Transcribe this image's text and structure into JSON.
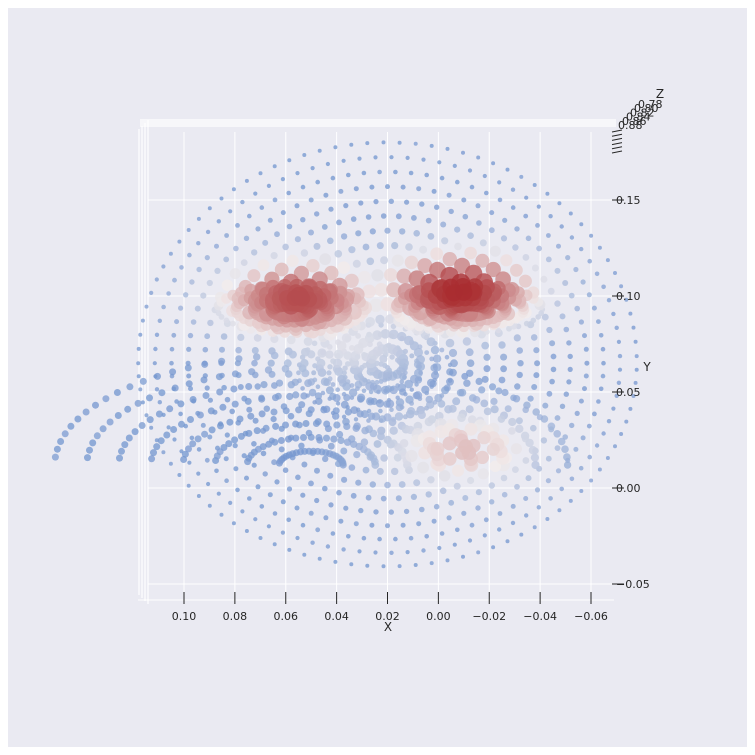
{
  "chart_data": {
    "type": "scatter",
    "projection": "3d, viewed from +Z (face-on), x axis reversed",
    "title": "",
    "xlabel": "X",
    "ylabel": "Y",
    "zlabel": "Z",
    "x_ticks": [
      "0.10",
      "0.08",
      "0.06",
      "0.04",
      "0.02",
      "0.00",
      "−0.02",
      "−0.04",
      "−0.06"
    ],
    "x_tick_values": [
      0.1,
      0.08,
      0.06,
      0.04,
      0.02,
      0.0,
      -0.02,
      -0.04,
      -0.06
    ],
    "xlim": [
      0.112,
      -0.07
    ],
    "y_ticks": [
      "0.15",
      "0.10",
      "0.05",
      "0.00",
      "−0.05"
    ],
    "y_tick_values": [
      0.15,
      0.1,
      0.05,
      0.0,
      -0.05
    ],
    "ylim": [
      -0.055,
      0.18
    ],
    "z_ticks": [
      "0.78",
      "0.80",
      "0.82",
      "0.84",
      "0.86",
      "0.88"
    ],
    "grid": true,
    "colormap": "blue-white-red (vlag)",
    "colors": {
      "low": "#3B6FC2",
      "mid": "#F2ECEC",
      "high": "#A82B2E",
      "background": "#EAEAF2",
      "grid": "#FFFFFF"
    },
    "description": "Point cloud of a face mesh; marker size and color encode a value that peaks (red) around both eyes and the right cheek.",
    "hotspots": [
      {
        "name": "left eye",
        "x": 0.055,
        "y": 0.099,
        "strength": 0.9
      },
      {
        "name": "right eye",
        "x": -0.008,
        "y": 0.103,
        "strength": 1.0
      },
      {
        "name": "right cheek",
        "x": -0.01,
        "y": 0.02,
        "strength": 0.55
      },
      {
        "name": "nose bridge",
        "x": 0.035,
        "y": 0.075,
        "strength": 0.35
      }
    ],
    "face_center": {
      "x": 0.02,
      "y": 0.055
    }
  }
}
